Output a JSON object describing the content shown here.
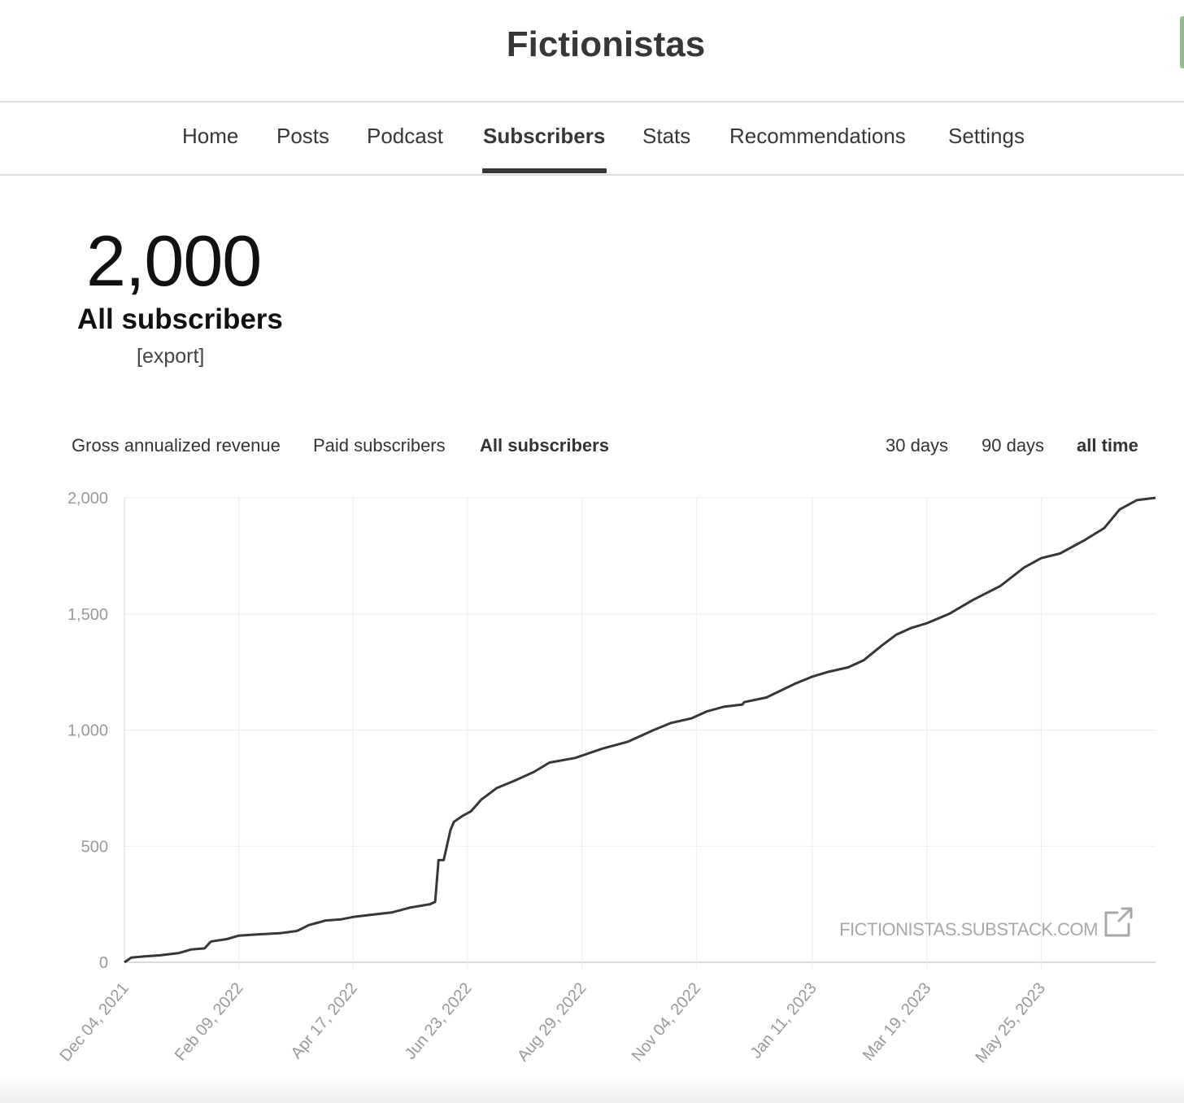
{
  "site": {
    "title": "Fictionistas"
  },
  "nav": {
    "items": [
      {
        "label": "Home"
      },
      {
        "label": "Posts"
      },
      {
        "label": "Podcast"
      },
      {
        "label": "Subscribers",
        "active": true
      },
      {
        "label": "Stats"
      },
      {
        "label": "Recommendations"
      },
      {
        "label": "Settings"
      }
    ]
  },
  "summary": {
    "count": "2,000",
    "label": "All subscribers",
    "export_label": "[export]"
  },
  "metric_tabs": [
    {
      "label": "Gross annualized revenue"
    },
    {
      "label": "Paid subscribers"
    },
    {
      "label": "All subscribers",
      "active": true
    }
  ],
  "range_tabs": [
    {
      "label": "30 days"
    },
    {
      "label": "90 days"
    },
    {
      "label": "all time",
      "active": true
    }
  ],
  "watermark": {
    "text": "FICTIONISTAS.SUBSTACK.COM",
    "icon": "external-link-icon"
  },
  "colors": {
    "line": "#363737",
    "grid": "#ececec",
    "tick_text": "#999999",
    "active_underline": "#363737"
  },
  "chart_data": {
    "type": "line",
    "title": "",
    "xlabel": "",
    "ylabel": "",
    "ylim": [
      0,
      2000
    ],
    "yticks": [
      0,
      500,
      1000,
      1500,
      2000
    ],
    "ytick_labels": [
      "0",
      "500",
      "1,000",
      "1,500",
      "2,000"
    ],
    "xlim": [
      "2021-12-04",
      "2023-07-31"
    ],
    "xticks": [
      "2021-12-04",
      "2022-02-09",
      "2022-04-17",
      "2022-06-23",
      "2022-08-29",
      "2022-11-04",
      "2023-01-11",
      "2023-03-19",
      "2023-05-25"
    ],
    "xtick_labels": [
      "Dec 04, 2021",
      "Feb 09, 2022",
      "Apr 17, 2022",
      "Jun 23, 2022",
      "Aug 29, 2022",
      "Nov 04, 2022",
      "Jan 11, 2023",
      "Mar 19, 2023",
      "May 25, 2023"
    ],
    "grid": true,
    "series": [
      {
        "x": [
          "2021-12-04",
          "2021-12-08",
          "2021-12-15",
          "2021-12-25",
          "2022-01-05",
          "2022-01-12",
          "2022-01-20",
          "2022-01-23",
          "2022-01-24",
          "2022-02-02",
          "2022-02-09",
          "2022-02-20",
          "2022-03-05",
          "2022-03-15",
          "2022-03-18",
          "2022-03-22",
          "2022-03-27",
          "2022-04-01",
          "2022-04-10",
          "2022-04-17",
          "2022-04-28",
          "2022-05-10",
          "2022-05-20",
          "2022-06-01",
          "2022-06-04",
          "2022-06-06",
          "2022-06-09",
          "2022-06-13",
          "2022-06-15",
          "2022-06-20",
          "2022-06-25",
          "2022-07-01",
          "2022-07-10",
          "2022-07-20",
          "2022-08-01",
          "2022-08-10",
          "2022-08-25",
          "2022-09-10",
          "2022-09-25",
          "2022-10-10",
          "2022-10-20",
          "2022-11-01",
          "2022-11-10",
          "2022-11-20",
          "2022-12-01",
          "2022-12-02",
          "2022-12-15",
          "2023-01-01",
          "2023-01-11",
          "2023-01-20",
          "2023-02-01",
          "2023-02-10",
          "2023-02-20",
          "2023-03-01",
          "2023-03-10",
          "2023-03-19",
          "2023-04-01",
          "2023-04-15",
          "2023-05-01",
          "2023-05-15",
          "2023-05-25",
          "2023-06-05",
          "2023-06-20",
          "2023-07-01",
          "2023-07-10",
          "2023-07-20",
          "2023-07-31"
        ],
        "y": [
          0,
          20,
          25,
          30,
          40,
          55,
          60,
          85,
          90,
          100,
          115,
          120,
          125,
          135,
          145,
          160,
          170,
          180,
          185,
          195,
          205,
          215,
          235,
          250,
          260,
          440,
          440,
          570,
          605,
          630,
          650,
          700,
          750,
          780,
          820,
          860,
          880,
          920,
          950,
          1000,
          1030,
          1050,
          1080,
          1100,
          1110,
          1120,
          1140,
          1200,
          1230,
          1250,
          1270,
          1300,
          1360,
          1410,
          1440,
          1460,
          1500,
          1560,
          1620,
          1700,
          1740,
          1760,
          1820,
          1870,
          1950,
          1990,
          2000
        ]
      }
    ]
  }
}
